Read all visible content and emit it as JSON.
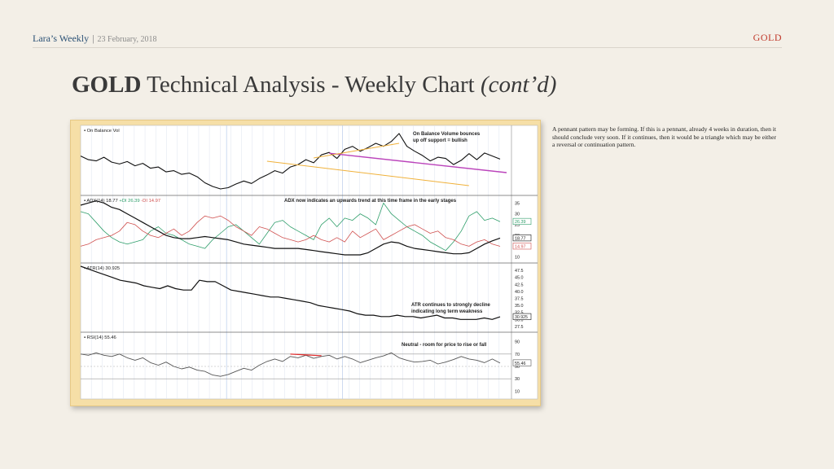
{
  "header": {
    "brand": "Lara’s Weekly",
    "separator": "|",
    "date": "23 February, 2018",
    "tag": "GOLD"
  },
  "title": {
    "bold": "GOLD",
    "regular": " Technical Analysis - Weekly Chart ",
    "italic": "(cont’d)"
  },
  "description": "A pennant pattern may be forming. If this is a pennant, already 4 weeks in duration, then it should conclude very soon. If it continues, then it would be a triangle which may be either a reversal or continuation pattern.",
  "colors": {
    "accent": "#c0392b",
    "brand": "#2c5276",
    "frame": "#f6dfa7",
    "obv_line": "#111111",
    "resistance": "#bb44bb",
    "support": "#f0b13a",
    "plus_di": "#2e9e6a",
    "minus_di": "#d0504f",
    "rsi_divergence": "#e03030"
  },
  "chart_data": [
    {
      "type": "line",
      "panel": "On Balance Vol",
      "title": "On Balance Vol",
      "annotation": [
        "On Balance Volume bounces",
        "up off support = bullish"
      ],
      "series": [
        {
          "values": [
            58,
            52,
            50,
            56,
            48,
            45,
            49,
            42,
            46,
            38,
            40,
            32,
            34,
            28,
            30,
            24,
            14,
            8,
            4,
            6,
            12,
            17,
            13,
            21,
            27,
            34,
            30,
            40,
            44,
            52,
            47,
            60,
            64,
            54,
            69,
            74,
            66,
            72,
            79,
            74,
            82,
            95,
            74,
            66,
            59,
            50,
            56,
            54,
            44,
            51,
            62,
            52,
            63,
            58,
            53
          ]
        }
      ],
      "trendlines": [
        "resistance",
        "support",
        "support"
      ]
    },
    {
      "type": "line",
      "panel": "ADX",
      "title": "ADX(14) 18.77",
      "legend": [
        "+DI 26.39",
        "-DI 14.97"
      ],
      "annotation": [
        "ADX now indicates an upwards trend at this time frame in the early stages"
      ],
      "yticks": [
        "35",
        "30",
        "25",
        "20",
        "15",
        "10"
      ],
      "last_values": [
        "26.39",
        "18.77",
        "14.97"
      ],
      "ylim": [
        8,
        37
      ],
      "series": [
        {
          "name": "ADX",
          "values": [
            34,
            35,
            36,
            35,
            33,
            32,
            30,
            28,
            26,
            24,
            22,
            20,
            19,
            18.5,
            18.5,
            19,
            19.5,
            19,
            18.5,
            18,
            17,
            16,
            15.5,
            15,
            14.5,
            14,
            14,
            14,
            14,
            13.5,
            13,
            12.5,
            12,
            11.5,
            11,
            11,
            11,
            12,
            14,
            16,
            17,
            16.5,
            15,
            14,
            13.5,
            13,
            12.5,
            12,
            11.5,
            11.5,
            12,
            14,
            16,
            17.5,
            18.77
          ]
        },
        {
          "name": "+DI 26.39",
          "values": [
            31,
            30,
            26,
            22,
            19,
            17,
            16,
            17,
            18,
            22,
            24,
            21,
            20,
            18,
            16,
            15,
            14,
            18,
            21,
            24,
            25,
            22,
            19,
            16,
            21,
            26,
            27,
            24,
            22,
            20,
            18,
            25,
            28,
            24,
            28,
            27,
            30,
            28,
            25,
            35,
            30,
            27,
            24,
            22,
            20,
            17,
            15,
            13,
            17,
            22,
            29,
            31,
            27,
            28,
            26.39
          ]
        },
        {
          "name": "-DI 14.97",
          "values": [
            15,
            16,
            18,
            19,
            20,
            22,
            26,
            25,
            22,
            20,
            19,
            21,
            23,
            20,
            22,
            26,
            29,
            28,
            29,
            27,
            24,
            22,
            20,
            24,
            23,
            21,
            19,
            18,
            17,
            18,
            20,
            18,
            17,
            19,
            17,
            22,
            19,
            21,
            23,
            18,
            20,
            22,
            24,
            25,
            23,
            21,
            22,
            19,
            18,
            16,
            15,
            17,
            18,
            16,
            14.97
          ]
        }
      ]
    },
    {
      "type": "line",
      "panel": "ATR",
      "title": "ATR(14) 30.925",
      "annotation": [
        "ATR continues to strongly decline",
        "indicating long term weakness"
      ],
      "yticks": [
        "47.5",
        "45.0",
        "42.5",
        "40.0",
        "37.5",
        "35.0",
        "32.5",
        "30.0",
        "27.5"
      ],
      "last_values": [
        "30.925"
      ],
      "ylim": [
        26,
        49
      ],
      "series": [
        {
          "values": [
            49,
            48,
            47,
            46,
            45,
            44,
            43.5,
            43,
            42,
            41.5,
            41,
            42,
            41,
            40.5,
            40.5,
            44,
            43.5,
            43.5,
            42,
            40.5,
            40,
            39.5,
            39,
            38.5,
            38,
            38,
            37.5,
            37,
            36.5,
            36,
            35,
            34.5,
            34,
            33.5,
            33,
            32,
            31.5,
            31.5,
            31,
            31,
            31.5,
            31,
            31,
            30.5,
            31,
            31.5,
            30.5,
            30.5,
            30,
            30,
            30,
            30.5,
            30,
            30.925
          ]
        }
      ]
    },
    {
      "type": "line",
      "panel": "RSI",
      "title": "RSI(14) 55.46",
      "annotation": [
        "Neutral - room for price to rise or fall"
      ],
      "yticks": [
        "90",
        "70",
        "50",
        "30",
        "10"
      ],
      "last_values": [
        "55.46"
      ],
      "ylim": [
        0,
        100
      ],
      "series": [
        {
          "values": [
            70,
            68,
            72,
            68,
            66,
            70,
            64,
            60,
            64,
            56,
            52,
            57,
            50,
            46,
            49,
            44,
            42,
            36,
            34,
            37,
            42,
            47,
            44,
            52,
            58,
            62,
            58,
            66,
            64,
            68,
            63,
            66,
            68,
            62,
            66,
            62,
            56,
            60,
            64,
            67,
            72,
            64,
            60,
            57,
            58,
            60,
            54,
            57,
            61,
            66,
            62,
            60,
            56,
            62,
            55.46
          ]
        }
      ],
      "divergence_line": true
    }
  ]
}
